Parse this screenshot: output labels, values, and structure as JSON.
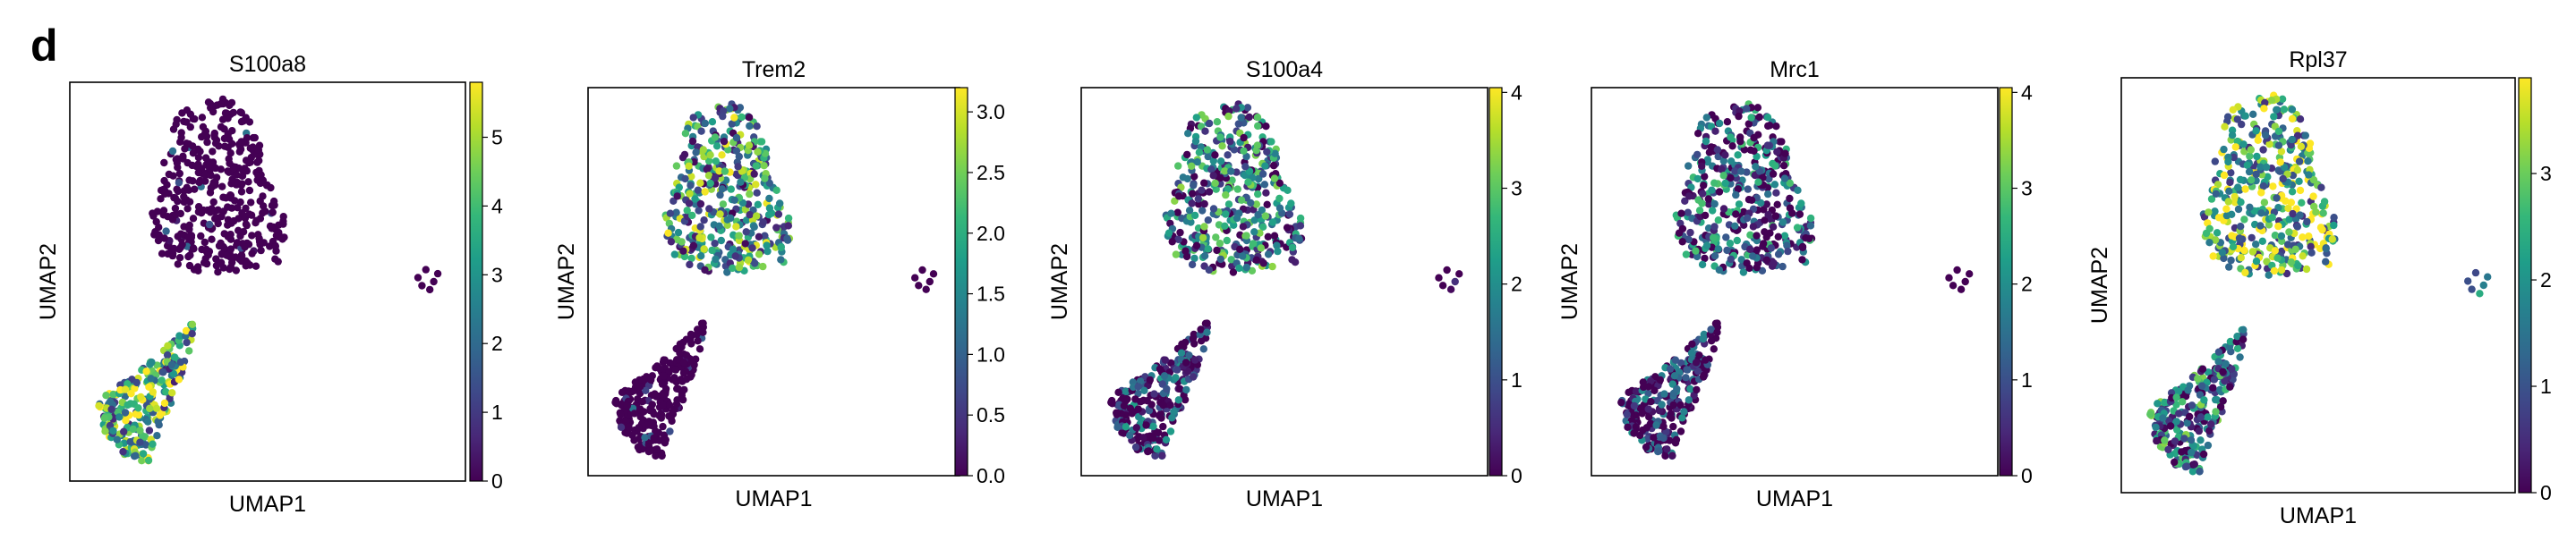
{
  "figure": {
    "panel_label": "d"
  },
  "colormap": {
    "name": "viridis",
    "stops": [
      "#440154",
      "#482878",
      "#3e4989",
      "#31688e",
      "#26828e",
      "#1f9e89",
      "#35b779",
      "#6ece58",
      "#b5de2b",
      "#fde725"
    ]
  },
  "chart_data": [
    {
      "type": "scatter",
      "title": "S100a8",
      "xlabel": "UMAP1",
      "ylabel": "UMAP2",
      "colorbar": {
        "range": [
          0,
          5.8
        ],
        "ticks": [
          "0",
          "1",
          "2",
          "3",
          "4",
          "5"
        ],
        "tick_values": [
          0,
          1,
          2,
          3,
          4,
          5
        ]
      },
      "clusters": {
        "top": 0.0,
        "bottom_left": 3.4,
        "right_small": 0.0
      }
    },
    {
      "type": "scatter",
      "title": "Trem2",
      "xlabel": "UMAP1",
      "ylabel": "UMAP2",
      "colorbar": {
        "range": [
          0,
          3.2
        ],
        "ticks": [
          "0.0",
          "0.5",
          "1.0",
          "1.5",
          "2.0",
          "2.5",
          "3.0"
        ],
        "tick_values": [
          0,
          0.5,
          1,
          1.5,
          2,
          2.5,
          3
        ]
      },
      "clusters": {
        "top": 1.6,
        "bottom_left": 0.0,
        "right_small": 0.0
      }
    },
    {
      "type": "scatter",
      "title": "S100a4",
      "xlabel": "UMAP1",
      "ylabel": "UMAP2",
      "colorbar": {
        "range": [
          0,
          4.05
        ],
        "ticks": [
          "0",
          "1",
          "2",
          "3",
          "4"
        ],
        "tick_values": [
          0,
          1,
          2,
          3,
          4
        ]
      },
      "clusters": {
        "top": 1.4,
        "bottom_left": 0.3,
        "right_small": 0.2
      }
    },
    {
      "type": "scatter",
      "title": "Mrc1",
      "xlabel": "UMAP1",
      "ylabel": "UMAP2",
      "colorbar": {
        "range": [
          0,
          4.05
        ],
        "ticks": [
          "0",
          "1",
          "2",
          "3",
          "4"
        ],
        "tick_values": [
          0,
          1,
          2,
          3,
          4
        ]
      },
      "clusters": {
        "top": 0.9,
        "bottom_left": 0.1,
        "right_small": 0.0
      }
    },
    {
      "type": "scatter",
      "title": "Rpl37",
      "xlabel": "UMAP1",
      "ylabel": "UMAP2",
      "colorbar": {
        "range": [
          0,
          3.9
        ],
        "ticks": [
          "0",
          "1",
          "2",
          "3"
        ],
        "tick_values": [
          0,
          1,
          2,
          3
        ]
      },
      "clusters": {
        "top": 2.4,
        "bottom_left": 1.3,
        "right_small": 1.9
      }
    }
  ]
}
